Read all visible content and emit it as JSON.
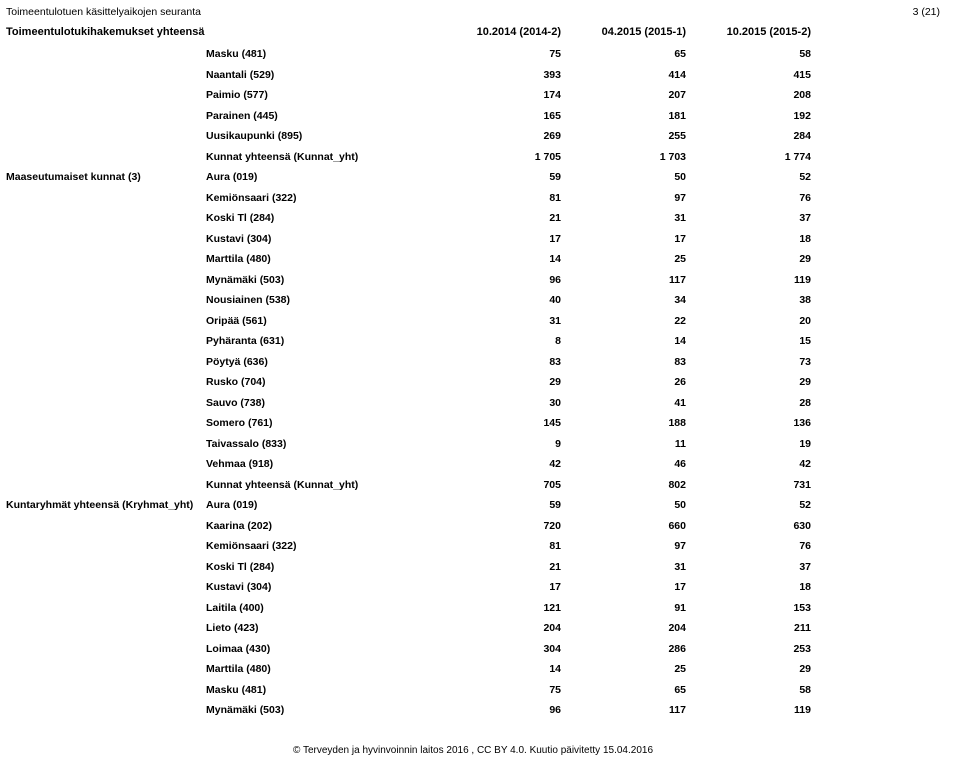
{
  "header": {
    "top_left": "Toimeentulotuen käsittelyaikojen seuranta",
    "top_right": "3 (21)",
    "title": "Toimeentulotukihakemukset yhteensä",
    "col1": "10.2014 (2014-2)",
    "col2": "04.2015 (2015-1)",
    "col3": "10.2015 (2015-2)"
  },
  "rows": [
    {
      "group": "",
      "area": "Masku (481)",
      "v1": "75",
      "v2": "65",
      "v3": "58"
    },
    {
      "group": "",
      "area": "Naantali (529)",
      "v1": "393",
      "v2": "414",
      "v3": "415"
    },
    {
      "group": "",
      "area": "Paimio (577)",
      "v1": "174",
      "v2": "207",
      "v3": "208"
    },
    {
      "group": "",
      "area": "Parainen (445)",
      "v1": "165",
      "v2": "181",
      "v3": "192"
    },
    {
      "group": "",
      "area": "Uusikaupunki (895)",
      "v1": "269",
      "v2": "255",
      "v3": "284"
    },
    {
      "group": "",
      "area": "Kunnat yhteensä (Kunnat_yht)",
      "v1": "1 705",
      "v2": "1 703",
      "v3": "1 774"
    },
    {
      "group": "Maaseutumaiset kunnat (3)",
      "area": "Aura (019)",
      "v1": "59",
      "v2": "50",
      "v3": "52"
    },
    {
      "group": "",
      "area": "Kemiönsaari (322)",
      "v1": "81",
      "v2": "97",
      "v3": "76"
    },
    {
      "group": "",
      "area": "Koski Tl (284)",
      "v1": "21",
      "v2": "31",
      "v3": "37"
    },
    {
      "group": "",
      "area": "Kustavi (304)",
      "v1": "17",
      "v2": "17",
      "v3": "18"
    },
    {
      "group": "",
      "area": "Marttila (480)",
      "v1": "14",
      "v2": "25",
      "v3": "29"
    },
    {
      "group": "",
      "area": "Mynämäki (503)",
      "v1": "96",
      "v2": "117",
      "v3": "119"
    },
    {
      "group": "",
      "area": "Nousiainen (538)",
      "v1": "40",
      "v2": "34",
      "v3": "38"
    },
    {
      "group": "",
      "area": "Oripää (561)",
      "v1": "31",
      "v2": "22",
      "v3": "20"
    },
    {
      "group": "",
      "area": "Pyhäranta (631)",
      "v1": "8",
      "v2": "14",
      "v3": "15"
    },
    {
      "group": "",
      "area": "Pöytyä (636)",
      "v1": "83",
      "v2": "83",
      "v3": "73"
    },
    {
      "group": "",
      "area": "Rusko (704)",
      "v1": "29",
      "v2": "26",
      "v3": "29"
    },
    {
      "group": "",
      "area": "Sauvo (738)",
      "v1": "30",
      "v2": "41",
      "v3": "28"
    },
    {
      "group": "",
      "area": "Somero (761)",
      "v1": "145",
      "v2": "188",
      "v3": "136"
    },
    {
      "group": "",
      "area": "Taivassalo (833)",
      "v1": "9",
      "v2": "11",
      "v3": "19"
    },
    {
      "group": "",
      "area": "Vehmaa (918)",
      "v1": "42",
      "v2": "46",
      "v3": "42"
    },
    {
      "group": "",
      "area": "Kunnat yhteensä (Kunnat_yht)",
      "v1": "705",
      "v2": "802",
      "v3": "731"
    },
    {
      "group": "Kuntaryhmät yhteensä (Kryhmat_yht)",
      "area": "Aura (019)",
      "v1": "59",
      "v2": "50",
      "v3": "52"
    },
    {
      "group": "",
      "area": "Kaarina (202)",
      "v1": "720",
      "v2": "660",
      "v3": "630"
    },
    {
      "group": "",
      "area": "Kemiönsaari (322)",
      "v1": "81",
      "v2": "97",
      "v3": "76"
    },
    {
      "group": "",
      "area": "Koski Tl (284)",
      "v1": "21",
      "v2": "31",
      "v3": "37"
    },
    {
      "group": "",
      "area": "Kustavi (304)",
      "v1": "17",
      "v2": "17",
      "v3": "18"
    },
    {
      "group": "",
      "area": "Laitila (400)",
      "v1": "121",
      "v2": "91",
      "v3": "153"
    },
    {
      "group": "",
      "area": "Lieto (423)",
      "v1": "204",
      "v2": "204",
      "v3": "211"
    },
    {
      "group": "",
      "area": "Loimaa (430)",
      "v1": "304",
      "v2": "286",
      "v3": "253"
    },
    {
      "group": "",
      "area": "Marttila (480)",
      "v1": "14",
      "v2": "25",
      "v3": "29"
    },
    {
      "group": "",
      "area": "Masku (481)",
      "v1": "75",
      "v2": "65",
      "v3": "58"
    },
    {
      "group": "",
      "area": "Mynämäki (503)",
      "v1": "96",
      "v2": "117",
      "v3": "119"
    }
  ],
  "footer": {
    "text": "© Terveyden ja hyvinvoinnin laitos 2016 , CC BY 4.0.  Kuutio päivitetty 15.04.2016"
  }
}
